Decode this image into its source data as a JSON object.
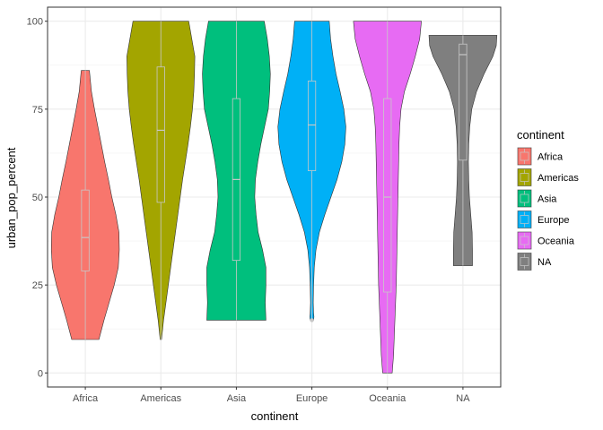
{
  "chart_data": {
    "type": "violin",
    "xlabel": "continent",
    "ylabel": "urban_pop_percent",
    "ylim": [
      -4,
      104
    ],
    "yticks": [
      0,
      25,
      50,
      75,
      100
    ],
    "grid": true,
    "legend": {
      "title": "continent",
      "position": "right"
    },
    "categories": [
      "Africa",
      "Americas",
      "Asia",
      "Europe",
      "Oceania",
      "NA"
    ],
    "colors": [
      "#F8766D",
      "#A3A500",
      "#00BF7D",
      "#00B0F6",
      "#E76BF3",
      "#7F7F7F"
    ],
    "series": [
      {
        "name": "Africa",
        "min": 9.5,
        "q1": 29,
        "median": 38.5,
        "q3": 52,
        "max": 86,
        "density": [
          [
            9.5,
            0.4
          ],
          [
            15,
            0.55
          ],
          [
            20,
            0.7
          ],
          [
            25,
            0.85
          ],
          [
            30,
            0.97
          ],
          [
            35,
            1.0
          ],
          [
            40,
            0.99
          ],
          [
            45,
            0.9
          ],
          [
            50,
            0.78
          ],
          [
            55,
            0.68
          ],
          [
            60,
            0.57
          ],
          [
            65,
            0.47
          ],
          [
            70,
            0.37
          ],
          [
            75,
            0.27
          ],
          [
            80,
            0.18
          ],
          [
            86,
            0.12
          ]
        ]
      },
      {
        "name": "Americas",
        "min": 9.5,
        "q1": 48.5,
        "median": 69,
        "q3": 87,
        "max": 100,
        "density": [
          [
            9.5,
            0.02
          ],
          [
            15,
            0.08
          ],
          [
            20,
            0.15
          ],
          [
            25,
            0.22
          ],
          [
            30,
            0.29
          ],
          [
            35,
            0.36
          ],
          [
            40,
            0.43
          ],
          [
            45,
            0.5
          ],
          [
            50,
            0.57
          ],
          [
            55,
            0.64
          ],
          [
            60,
            0.72
          ],
          [
            65,
            0.8
          ],
          [
            70,
            0.87
          ],
          [
            75,
            0.93
          ],
          [
            80,
            0.97
          ],
          [
            85,
            0.99
          ],
          [
            90,
            1.0
          ],
          [
            95,
            0.91
          ],
          [
            100,
            0.82
          ]
        ]
      },
      {
        "name": "Asia",
        "min": 15,
        "q1": 32,
        "median": 55,
        "q3": 78,
        "max": 100,
        "density": [
          [
            15,
            0.87
          ],
          [
            20,
            0.85
          ],
          [
            25,
            0.87
          ],
          [
            30,
            0.87
          ],
          [
            35,
            0.77
          ],
          [
            40,
            0.64
          ],
          [
            45,
            0.58
          ],
          [
            50,
            0.54
          ],
          [
            55,
            0.56
          ],
          [
            60,
            0.63
          ],
          [
            65,
            0.72
          ],
          [
            70,
            0.83
          ],
          [
            75,
            0.94
          ],
          [
            80,
            0.98
          ],
          [
            85,
            1.0
          ],
          [
            90,
            0.97
          ],
          [
            95,
            0.91
          ],
          [
            100,
            0.82
          ]
        ]
      },
      {
        "name": "Europe",
        "min": 15,
        "q1": 57.5,
        "median": 70.5,
        "q3": 83,
        "max": 100,
        "density": [
          [
            15,
            0.05
          ],
          [
            16,
            0.06
          ],
          [
            17,
            0.05
          ],
          [
            20,
            0.04
          ],
          [
            25,
            0.05
          ],
          [
            30,
            0.07
          ],
          [
            35,
            0.12
          ],
          [
            40,
            0.22
          ],
          [
            45,
            0.38
          ],
          [
            50,
            0.56
          ],
          [
            55,
            0.74
          ],
          [
            60,
            0.88
          ],
          [
            65,
            0.97
          ],
          [
            70,
            1.0
          ],
          [
            75,
            0.94
          ],
          [
            80,
            0.83
          ],
          [
            85,
            0.71
          ],
          [
            90,
            0.62
          ],
          [
            95,
            0.55
          ],
          [
            100,
            0.51
          ]
        ]
      },
      {
        "name": "Oceania",
        "min": 0,
        "q1": 23,
        "median": 50,
        "q3": 78,
        "max": 100,
        "density": [
          [
            0,
            0.14
          ],
          [
            5,
            0.18
          ],
          [
            10,
            0.2
          ],
          [
            15,
            0.22
          ],
          [
            20,
            0.24
          ],
          [
            25,
            0.26
          ],
          [
            30,
            0.27
          ],
          [
            35,
            0.28
          ],
          [
            40,
            0.29
          ],
          [
            45,
            0.3
          ],
          [
            50,
            0.31
          ],
          [
            55,
            0.32
          ],
          [
            60,
            0.33
          ],
          [
            65,
            0.34
          ],
          [
            70,
            0.36
          ],
          [
            75,
            0.4
          ],
          [
            80,
            0.5
          ],
          [
            85,
            0.67
          ],
          [
            90,
            0.82
          ],
          [
            95,
            0.95
          ],
          [
            100,
            1.0
          ]
        ]
      },
      {
        "name": "NA",
        "min": 30.5,
        "q1": 60.5,
        "median": 90.5,
        "q3": 93.5,
        "max": 96,
        "density": [
          [
            30.5,
            0.28
          ],
          [
            35,
            0.28
          ],
          [
            40,
            0.27
          ],
          [
            45,
            0.23
          ],
          [
            50,
            0.19
          ],
          [
            55,
            0.17
          ],
          [
            60,
            0.16
          ],
          [
            65,
            0.17
          ],
          [
            70,
            0.2
          ],
          [
            75,
            0.26
          ],
          [
            80,
            0.4
          ],
          [
            85,
            0.62
          ],
          [
            90,
            0.88
          ],
          [
            93,
            0.98
          ],
          [
            96,
            1.0
          ]
        ]
      }
    ]
  }
}
